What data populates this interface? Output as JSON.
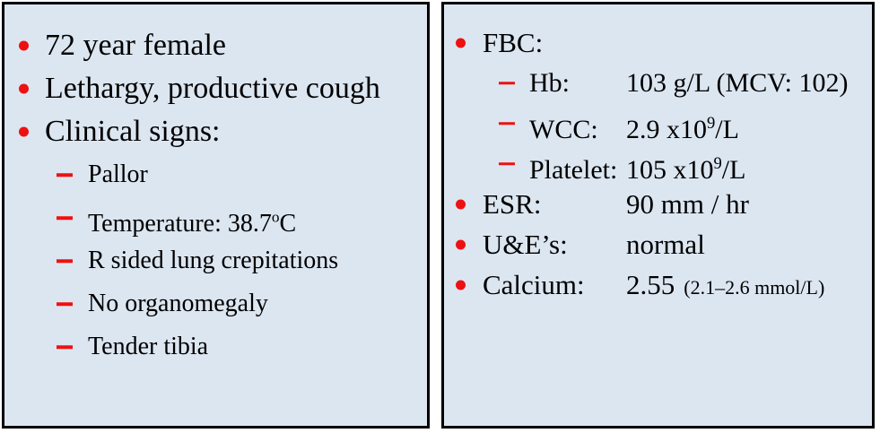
{
  "colors": {
    "panel_bg": "#dce6f1",
    "border": "#000000",
    "bullet_red": "#ee1111",
    "text": "#000000"
  },
  "left_panel": {
    "items": [
      {
        "level": 1,
        "text": "72 year female"
      },
      {
        "level": 1,
        "text": "Lethargy, productive cough"
      },
      {
        "level": 1,
        "text": "Clinical signs:"
      },
      {
        "level": 2,
        "text": "Pallor"
      },
      {
        "level": 2,
        "text": "Temperature: 38.7",
        "sup": "o",
        "post": "C"
      },
      {
        "level": 2,
        "text": "R sided lung crepitations"
      },
      {
        "level": 2,
        "text": "No organomegaly"
      },
      {
        "level": 2,
        "text": "Tender tibia"
      }
    ]
  },
  "right_panel": {
    "items": [
      {
        "level": 1,
        "label": "FBC:"
      },
      {
        "level": 2,
        "label": "Hb:",
        "value": "103 g/L (MCV: 102)"
      },
      {
        "level": 2,
        "label": "WCC:",
        "value": "2.9 x10",
        "value_sup": "9",
        "value_post": "/L"
      },
      {
        "level": 2,
        "label": "Platelet:",
        "value": "105 x10",
        "value_sup": "9",
        "value_post": "/L"
      },
      {
        "level": 1,
        "label": "ESR:",
        "value": "90 mm / hr"
      },
      {
        "level": 1,
        "label": "U&E’s:",
        "value": "normal"
      },
      {
        "level": 1,
        "label": "Calcium:",
        "value": "2.55",
        "value_note": "(2.1–2.6 mmol/L)"
      }
    ]
  }
}
